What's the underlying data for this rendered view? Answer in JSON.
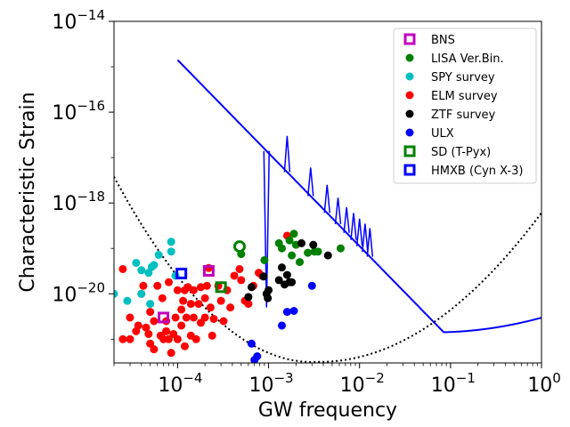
{
  "chart_data": {
    "type": "scatter",
    "xlabel": "GW frequency",
    "ylabel": "Characteristic Strain",
    "xscale": "log",
    "yscale": "log",
    "xlim": [
      2e-05,
      1
    ],
    "ylim": [
      3e-22,
      1e-14
    ],
    "x_ticks": [
      {
        "value": 0.0001,
        "mantissa": "10",
        "exp": "−4"
      },
      {
        "value": 0.001,
        "mantissa": "10",
        "exp": "−3"
      },
      {
        "value": 0.01,
        "mantissa": "10",
        "exp": "−2"
      },
      {
        "value": 0.1,
        "mantissa": "10",
        "exp": "−1"
      },
      {
        "value": 1,
        "mantissa": "10",
        "exp": "0"
      }
    ],
    "y_ticks": [
      {
        "value": 1e-14,
        "mantissa": "10",
        "exp": "−14"
      },
      {
        "value": 1e-16,
        "mantissa": "10",
        "exp": "−16"
      },
      {
        "value": 1e-18,
        "mantissa": "10",
        "exp": "−18"
      },
      {
        "value": 1e-20,
        "mantissa": "10",
        "exp": "−20"
      }
    ],
    "legend_position": "top-right",
    "grid": false,
    "curves": [
      {
        "name": "",
        "style": "solid",
        "color": "#0000ff"
      },
      {
        "name": "",
        "style": "dotted",
        "color": "#000000"
      }
    ],
    "series": [
      {
        "name": "BNS",
        "marker": "open-square",
        "color": "#bf00bf",
        "points": [
          [
            7e-05,
            3e-21
          ],
          [
            0.00022,
            3.2e-20
          ]
        ]
      },
      {
        "name": "LISA Ver.Bin.",
        "marker": "dot",
        "color": "#008000",
        "points": [
          [
            0.0009,
            5.5e-20
          ],
          [
            0.0013,
            1.3e-19
          ],
          [
            0.0014,
            1e-19
          ],
          [
            0.0017,
            1.5e-19
          ],
          [
            0.0019,
            2.1e-19
          ],
          [
            0.002,
            1.2e-19
          ],
          [
            0.0018,
            7e-20
          ],
          [
            0.0022,
            5e-20
          ],
          [
            0.0027,
            8e-20
          ],
          [
            0.0032,
            8.5e-20
          ],
          [
            0.0035,
            8.5e-20
          ],
          [
            0.0062,
            1e-19
          ],
          [
            0.0005,
            7.5e-20
          ]
        ]
      },
      {
        "name": "SPY survey",
        "marker": "dot",
        "color": "#00bfbf",
        "points": [
          [
            2e-05,
            1e-20
          ],
          [
            2.8e-05,
            7e-21
          ],
          [
            3.5e-05,
            4.8e-20
          ],
          [
            4e-05,
            3.3e-20
          ],
          [
            4e-05,
            1e-20
          ],
          [
            4.8e-05,
            2.9e-20
          ],
          [
            5.2e-05,
            3.9e-20
          ],
          [
            5e-05,
            6e-21
          ],
          [
            5.5e-05,
            4.3e-20
          ],
          [
            6.2e-05,
            7.2e-20
          ],
          [
            8.5e-05,
            1.4e-19
          ],
          [
            8.5e-05,
            8.5e-20
          ],
          [
            9.5e-05,
            2.5e-20
          ]
        ]
      },
      {
        "name": "ELM survey",
        "marker": "dot",
        "color": "#ff0000",
        "points": [
          [
            2.5e-05,
            3.5e-20
          ],
          [
            2.5e-05,
            1e-21
          ],
          [
            3e-05,
            1e-21
          ],
          [
            3e-05,
            3e-21
          ],
          [
            3.5e-05,
            1.5e-21
          ],
          [
            3.7e-05,
            2e-21
          ],
          [
            4e-05,
            1e-20
          ],
          [
            4.2e-05,
            1.5e-20
          ],
          [
            4.5e-05,
            1.8e-21
          ],
          [
            4.8e-05,
            1.3e-21
          ],
          [
            5e-05,
            4e-21
          ],
          [
            5e-05,
            8e-22
          ],
          [
            5.5e-05,
            6e-22
          ],
          [
            5.5e-05,
            2.5e-21
          ],
          [
            6e-05,
            1.5e-20
          ],
          [
            6.5e-05,
            1.2e-21
          ],
          [
            6.8e-05,
            8e-21
          ],
          [
            7e-05,
            1e-21
          ],
          [
            7.5e-05,
            1.5e-21
          ],
          [
            7.5e-05,
            2.5e-21
          ],
          [
            8e-05,
            1.8e-20
          ],
          [
            8e-05,
            1e-21
          ],
          [
            8.5e-05,
            5e-22
          ],
          [
            9e-05,
            1.3e-21
          ],
          [
            9.5e-05,
            3e-21
          ],
          [
            0.0001,
            1.2e-20
          ],
          [
            0.0001,
            1e-21
          ],
          [
            0.00011,
            4.5e-21
          ],
          [
            0.00011,
            2e-21
          ],
          [
            0.000115,
            7e-21
          ],
          [
            0.00012,
            1.2e-20
          ],
          [
            0.00012,
            7e-22
          ],
          [
            0.000125,
            3e-21
          ],
          [
            0.00013,
            1.4e-20
          ],
          [
            0.00014,
            6e-21
          ],
          [
            0.00014,
            1.2e-21
          ],
          [
            0.00015,
            1.2e-20
          ],
          [
            0.00015,
            3e-21
          ],
          [
            0.00016,
            1e-21
          ],
          [
            0.00017,
            6e-21
          ],
          [
            0.00018,
            1.4e-20
          ],
          [
            0.00018,
            2.3e-21
          ],
          [
            0.0002,
            3e-21
          ],
          [
            0.0002,
            8e-21
          ],
          [
            0.00021,
            1.5e-20
          ],
          [
            0.00022,
            3.7e-20
          ],
          [
            0.00023,
            5e-21
          ],
          [
            0.00024,
            1.2e-21
          ],
          [
            0.00025,
            2.8e-21
          ],
          [
            0.00028,
            1.5e-20
          ],
          [
            0.0003,
            7e-21
          ],
          [
            0.00032,
            2.5e-21
          ],
          [
            0.00035,
            1.2e-20
          ],
          [
            0.00038,
            5e-21
          ],
          [
            0.00042,
            2.5e-20
          ],
          [
            0.00048,
            3.5e-20
          ],
          [
            0.0005,
            2e-20
          ],
          [
            0.00055,
            7e-21
          ],
          [
            0.0006,
            6e-21
          ],
          [
            0.00068,
            1.5e-20
          ],
          [
            0.00078,
            2.9e-20
          ],
          [
            0.00085,
            2.5e-20
          ],
          [
            0.0016,
            1.9e-19
          ]
        ]
      },
      {
        "name": "ZTF survey",
        "marker": "dot",
        "color": "#000000",
        "points": [
          [
            0.0006,
            8.5e-21
          ],
          [
            0.00065,
            1.4e-20
          ],
          [
            0.00088,
            2.4e-20
          ],
          [
            0.00095,
            1e-20
          ],
          [
            0.00098,
            8e-21
          ],
          [
            0.001,
            1.2e-20
          ],
          [
            0.0013,
            2e-20
          ],
          [
            0.0014,
            3.8e-20
          ],
          [
            0.0015,
            1.6e-20
          ],
          [
            0.0016,
            2.6e-20
          ],
          [
            0.0017,
            1.8e-20
          ],
          [
            0.0018,
            1.8e-20
          ],
          [
            0.0023,
            1.3e-19
          ],
          [
            0.0031,
            1.2e-19
          ],
          [
            0.0045,
            7e-20
          ]
        ]
      },
      {
        "name": "ULX",
        "marker": "dot",
        "color": "#0000ff",
        "points": [
          [
            0.00065,
            8e-22
          ],
          [
            0.0007,
            3.5e-22
          ],
          [
            0.00075,
            4.2e-22
          ],
          [
            0.0014,
            2e-21
          ],
          [
            0.0016,
            4e-21
          ],
          [
            0.0019,
            4.2e-21
          ],
          [
            0.003,
            1.5e-20
          ]
        ]
      },
      {
        "name": "SD (T-Pyx)",
        "marker": "open-square",
        "color": "#008000",
        "points": [
          [
            0.0003,
            1.4e-20
          ]
        ]
      },
      {
        "name": "HMXB (Cyn X-3)",
        "marker": "open-square",
        "color": "#0000ff",
        "points": [
          [
            0.00011,
            2.8e-20
          ]
        ]
      }
    ],
    "extra_markers": [
      {
        "marker": "open-circle",
        "color": "#008000",
        "x": 0.00048,
        "y": 1.1e-19
      }
    ]
  }
}
